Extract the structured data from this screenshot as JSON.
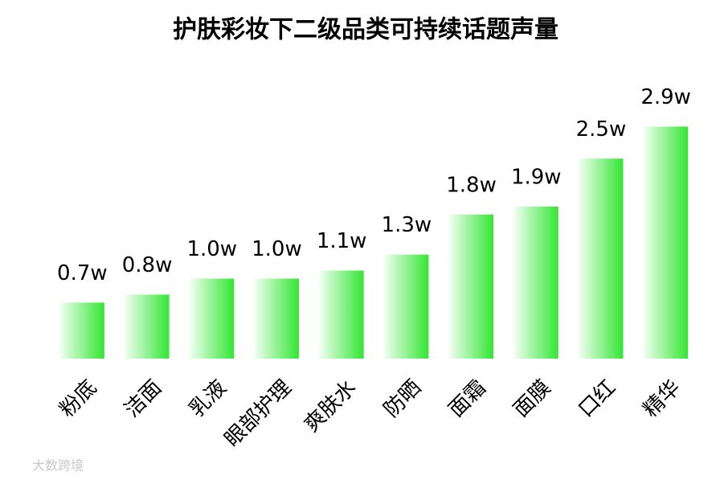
{
  "chart_data": {
    "type": "bar",
    "title": "护肤彩妆下二级品类可持续话题声量",
    "categories": [
      "粉底",
      "洁面",
      "乳液",
      "眼部护理",
      "爽肤水",
      "防晒",
      "面霜",
      "面膜",
      "口红",
      "精华"
    ],
    "values": [
      0.7,
      0.8,
      1.0,
      1.0,
      1.1,
      1.3,
      1.8,
      1.9,
      2.5,
      2.9
    ],
    "value_labels": [
      "0.7w",
      "0.8w",
      "1.0w",
      "1.0w",
      "1.1w",
      "1.3w",
      "1.8w",
      "1.9w",
      "2.5w",
      "2.9w"
    ],
    "color": "#33e633",
    "watermark": "大数跨境"
  }
}
